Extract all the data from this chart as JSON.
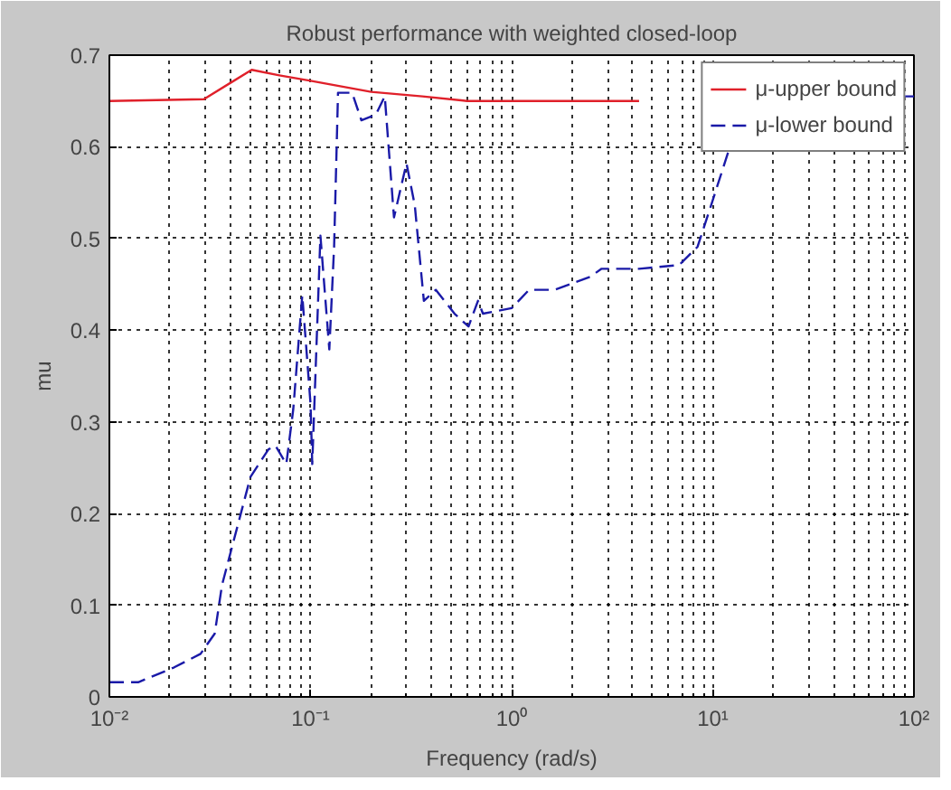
{
  "chart_data": {
    "type": "line",
    "title": "Robust performance with weighted closed-loop",
    "xlabel": "Frequency (rad/s)",
    "ylabel": "mu",
    "log": "x",
    "xlim": [
      0.01,
      100
    ],
    "ylim": [
      0,
      0.7
    ],
    "xticks": [
      {
        "value": 0.01,
        "label": "10⁻²"
      },
      {
        "value": 0.1,
        "label": "10⁻¹"
      },
      {
        "value": 1,
        "label": "10⁰"
      },
      {
        "value": 10,
        "label": "10¹"
      },
      {
        "value": 100,
        "label": "10²"
      }
    ],
    "yticks": [
      0,
      0.1,
      0.2,
      0.3,
      0.4,
      0.5,
      0.6,
      0.7
    ],
    "grid": true,
    "legend": "top right",
    "series": [
      {
        "name": "μ-upper bound",
        "color": "#e0202a",
        "line_style": "solid",
        "x": [
          0.01,
          0.0295,
          0.051,
          0.07,
          0.1,
          0.2,
          0.36,
          0.6,
          4.3
        ],
        "values": [
          0.65,
          0.652,
          0.684,
          0.678,
          0.672,
          0.66,
          0.655,
          0.65,
          0.65
        ]
      },
      {
        "name": "μ-lower bound",
        "color": "#1a1aa8",
        "line_style": "dashed",
        "x": [
          0.01,
          0.0139,
          0.0209,
          0.0284,
          0.0334,
          0.0363,
          0.0503,
          0.0618,
          0.067,
          0.0758,
          0.0821,
          0.091,
          0.1,
          0.102,
          0.112,
          0.124,
          0.131,
          0.137,
          0.161,
          0.179,
          0.211,
          0.234,
          0.26,
          0.3,
          0.33,
          0.366,
          0.42,
          0.52,
          0.61,
          0.68,
          0.72,
          1.0,
          1.22,
          1.64,
          2.45,
          2.8,
          4.3,
          6.8,
          8.4,
          9.8,
          12,
          50,
          90,
          100
        ],
        "values": [
          0.016,
          0.016,
          0.032,
          0.047,
          0.069,
          0.122,
          0.24,
          0.27,
          0.274,
          0.254,
          0.314,
          0.438,
          0.32,
          0.254,
          0.503,
          0.379,
          0.491,
          0.659,
          0.659,
          0.629,
          0.635,
          0.655,
          0.523,
          0.582,
          0.536,
          0.432,
          0.444,
          0.418,
          0.404,
          0.432,
          0.418,
          0.424,
          0.444,
          0.444,
          0.458,
          0.467,
          0.467,
          0.471,
          0.491,
          0.536,
          0.596,
          null,
          0.655,
          0.655
        ]
      }
    ]
  }
}
